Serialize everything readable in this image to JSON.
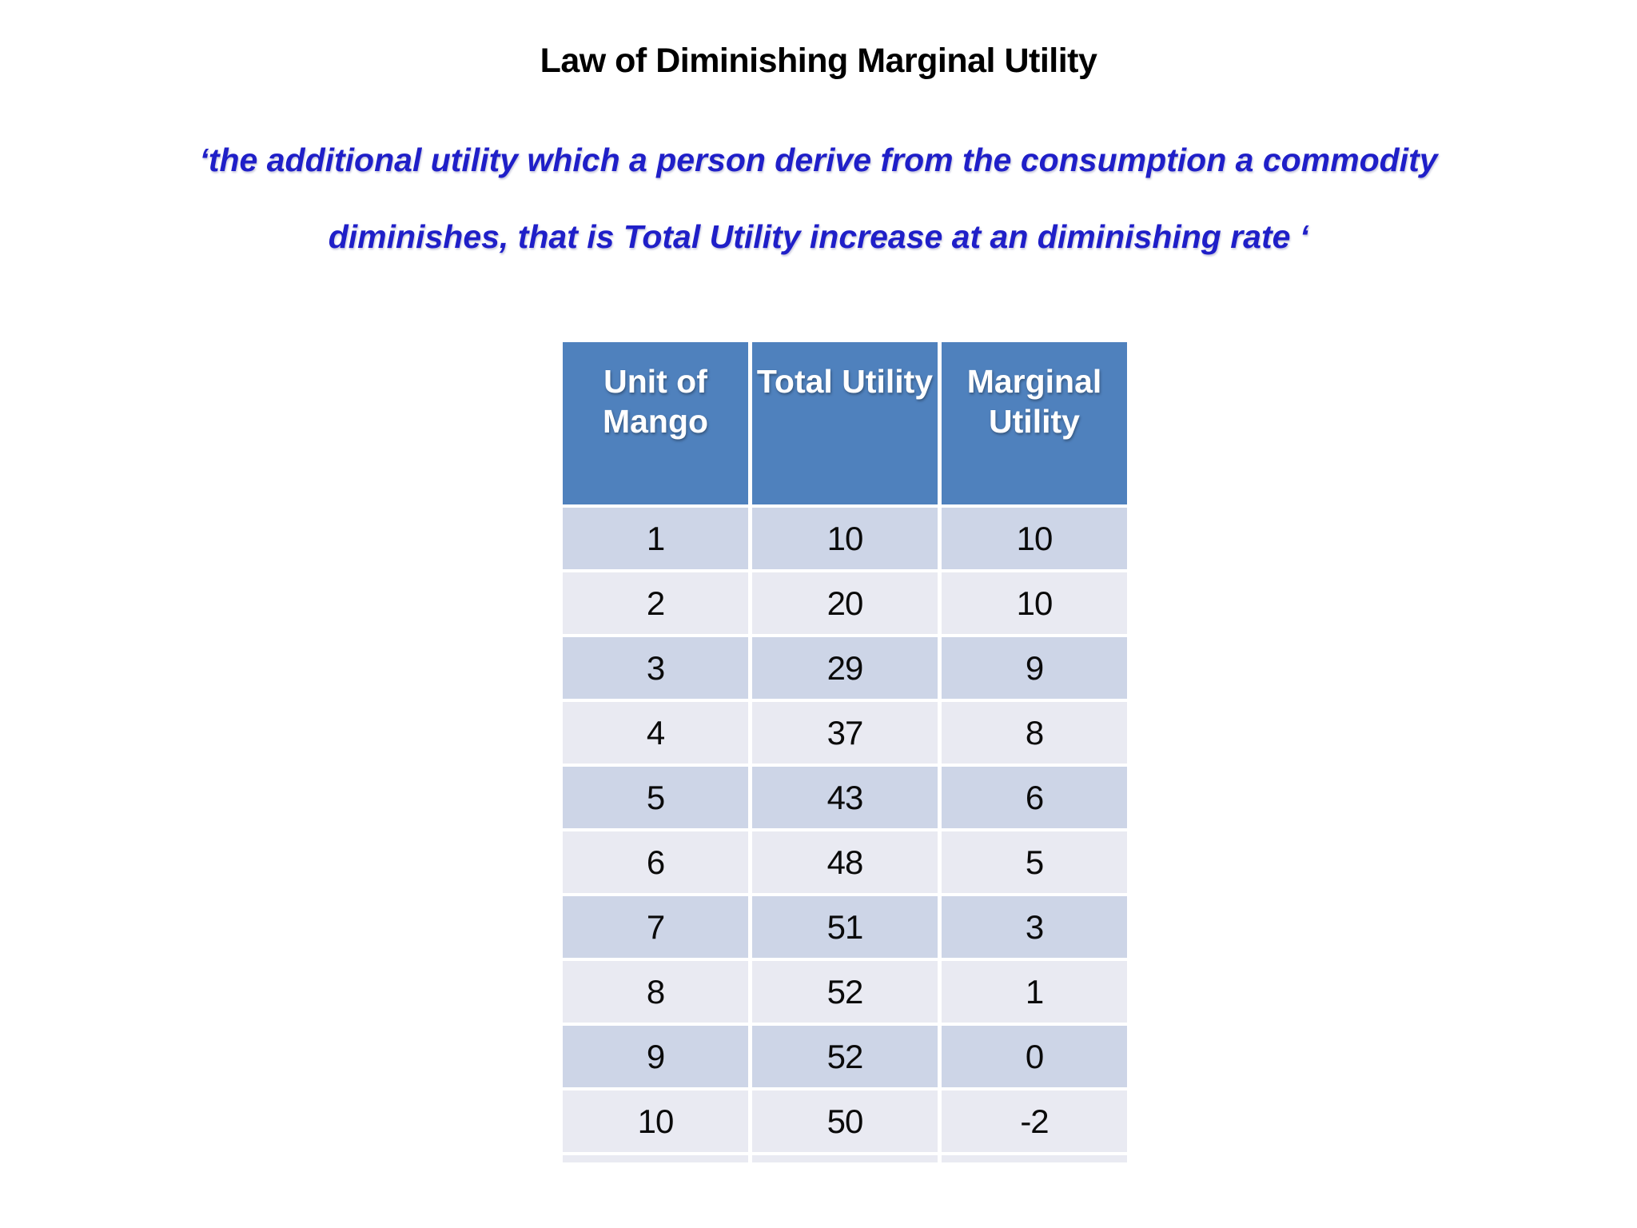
{
  "title": "Law of Diminishing Marginal Utility",
  "quote": {
    "line1": "‘the additional utility which a person derive from the consumption a commodity",
    "line2": "diminishes, that is Total Utility increase at an diminishing rate ‘"
  },
  "table": {
    "headers": [
      "Unit of Mango",
      "Total Utility",
      "Marginal Utility"
    ],
    "rows": [
      [
        "1",
        "10",
        "10"
      ],
      [
        "2",
        "20",
        "10"
      ],
      [
        "3",
        "29",
        "9"
      ],
      [
        "4",
        "37",
        "8"
      ],
      [
        "5",
        "43",
        "6"
      ],
      [
        "6",
        "48",
        "5"
      ],
      [
        "7",
        "51",
        "3"
      ],
      [
        "8",
        "52",
        "1"
      ],
      [
        "9",
        "52",
        "0"
      ],
      [
        "10",
        "50",
        "-2"
      ]
    ]
  },
  "colors": {
    "header_bg": "#4F81BD",
    "row_band_dark": "#CDD5E7",
    "row_band_light": "#E9EAF2",
    "quote_text": "#1F1FC8",
    "title_text": "#000000",
    "header_text": "#FFFFFF"
  }
}
